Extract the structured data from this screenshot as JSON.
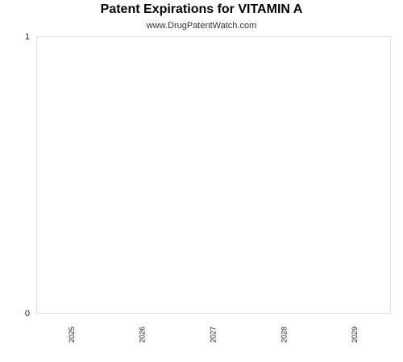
{
  "chart_data": {
    "type": "bar",
    "title": "Patent Expirations for VITAMIN A",
    "subtitle": "www.DrugPatentWatch.com",
    "categories": [
      "2025",
      "2026",
      "2027",
      "2028",
      "2029"
    ],
    "values": [
      0,
      0,
      0,
      0,
      0
    ],
    "y_ticks": [
      "0",
      "1"
    ],
    "ylim": [
      0,
      1
    ],
    "grid": false,
    "legend": "none",
    "colors": {
      "plot_border": "#dddddd",
      "tick_text": "#222222"
    }
  }
}
